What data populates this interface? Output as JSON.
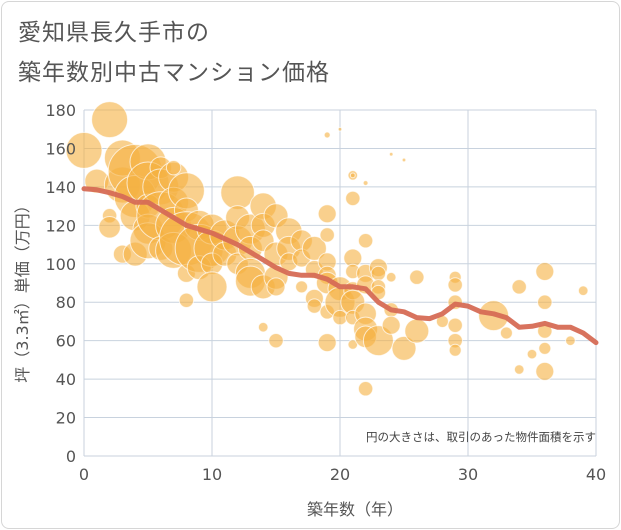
{
  "header": {
    "title_line1": "愛知県長久手市の",
    "title_line2": "築年数別中古マンション価格"
  },
  "colors": {
    "bubble": "#f5b041",
    "line": "#d66b55",
    "grid": "#c8d2de",
    "background": "#ffffff"
  },
  "chart_data": {
    "type": "scatter",
    "title": "愛知県長久手市の築年数別中古マンション価格",
    "xlabel": "築年数（年）",
    "ylabel": "坪（3.3㎡）単価（万円）",
    "xlim": [
      0,
      40
    ],
    "ylim": [
      0,
      180
    ],
    "xticks": [
      0,
      10,
      20,
      30,
      40
    ],
    "yticks": [
      0,
      20,
      40,
      60,
      80,
      100,
      120,
      140,
      160,
      180
    ],
    "grid": true,
    "note": "円の大きさは、取引のあった物件面積を示す",
    "trend_line": [
      [
        0,
        139
      ],
      [
        1,
        138.5
      ],
      [
        2,
        137
      ],
      [
        3,
        135
      ],
      [
        4,
        132
      ],
      [
        5,
        132
      ],
      [
        6,
        128
      ],
      [
        7,
        124
      ],
      [
        8,
        120
      ],
      [
        9,
        118
      ],
      [
        10,
        116
      ],
      [
        11,
        113
      ],
      [
        12,
        110
      ],
      [
        13,
        106
      ],
      [
        14,
        102
      ],
      [
        15,
        98
      ],
      [
        16,
        95
      ],
      [
        17,
        94
      ],
      [
        18,
        94
      ],
      [
        19,
        92
      ],
      [
        20,
        88
      ],
      [
        21,
        88
      ],
      [
        22,
        87
      ],
      [
        23,
        80
      ],
      [
        24,
        76
      ],
      [
        25,
        75
      ],
      [
        26,
        72
      ],
      [
        27,
        71.5
      ],
      [
        28,
        74
      ],
      [
        29,
        79
      ],
      [
        30,
        78
      ],
      [
        31,
        75
      ],
      [
        32,
        74
      ],
      [
        33,
        72
      ],
      [
        34,
        67
      ],
      [
        35,
        67.5
      ],
      [
        36,
        69
      ],
      [
        37,
        67
      ],
      [
        38,
        67
      ],
      [
        39,
        64
      ],
      [
        40,
        59
      ]
    ],
    "bubbles": [
      [
        0,
        159,
        3
      ],
      [
        1,
        143,
        2
      ],
      [
        2,
        175,
        3
      ],
      [
        2,
        125,
        1.2
      ],
      [
        2,
        119,
        1.8
      ],
      [
        3,
        141,
        3
      ],
      [
        3,
        155,
        3
      ],
      [
        3,
        105,
        1.5
      ],
      [
        4,
        148,
        4.5
      ],
      [
        4,
        135,
        3.5
      ],
      [
        4,
        125,
        2.5
      ],
      [
        4,
        105,
        2
      ],
      [
        5,
        153,
        3
      ],
      [
        5,
        142,
        3.5
      ],
      [
        5,
        130,
        2
      ],
      [
        5,
        118,
        2.5
      ],
      [
        5,
        112,
        3
      ],
      [
        6,
        150,
        1.8
      ],
      [
        6,
        140,
        3
      ],
      [
        6,
        125,
        4
      ],
      [
        6,
        108,
        2
      ],
      [
        7,
        145,
        2.5
      ],
      [
        7,
        132,
        2.5
      ],
      [
        7,
        120,
        3
      ],
      [
        7,
        107,
        3
      ],
      [
        7,
        150,
        1.2
      ],
      [
        8,
        138,
        3
      ],
      [
        8,
        128,
        2
      ],
      [
        8,
        113,
        4.5
      ],
      [
        8,
        95,
        1.5
      ],
      [
        8,
        81,
        1.2
      ],
      [
        9,
        120,
        2.5
      ],
      [
        9,
        108,
        4
      ],
      [
        9,
        98,
        2
      ],
      [
        10,
        118,
        2.5
      ],
      [
        10,
        108,
        3
      ],
      [
        10,
        100,
        1.8
      ],
      [
        10,
        88,
        2.5
      ],
      [
        11,
        115,
        2.5
      ],
      [
        11,
        105,
        2
      ],
      [
        12,
        137,
        2.8
      ],
      [
        12,
        124,
        2
      ],
      [
        12,
        112,
        2.5
      ],
      [
        12,
        100,
        1.8
      ],
      [
        13,
        118,
        2.5
      ],
      [
        13,
        108,
        2
      ],
      [
        13,
        95,
        2.5
      ],
      [
        13,
        91,
        2.5
      ],
      [
        14,
        130,
        2.2
      ],
      [
        14,
        120,
        2
      ],
      [
        14,
        112,
        1.8
      ],
      [
        14,
        88,
        2
      ],
      [
        14,
        67,
        0.8
      ],
      [
        15,
        125,
        2
      ],
      [
        15,
        105,
        2
      ],
      [
        15,
        93,
        2
      ],
      [
        15,
        88,
        1.5
      ],
      [
        15,
        60,
        1.2
      ],
      [
        16,
        117,
        2.2
      ],
      [
        16,
        108,
        2
      ],
      [
        16,
        101,
        1.5
      ],
      [
        17,
        112,
        1.8
      ],
      [
        17,
        103,
        1.5
      ],
      [
        17,
        88,
        1
      ],
      [
        18,
        108,
        2
      ],
      [
        18,
        97,
        1.5
      ],
      [
        18,
        82,
        1.5
      ],
      [
        18,
        78,
        1.2
      ],
      [
        19,
        126,
        1.5
      ],
      [
        19,
        115,
        1.2
      ],
      [
        19,
        101,
        1.5
      ],
      [
        19,
        94,
        1.5
      ],
      [
        19,
        90,
        1.8
      ],
      [
        19,
        75,
        1.2
      ],
      [
        19,
        59,
        1.5
      ],
      [
        19,
        167,
        0.5
      ],
      [
        20,
        87,
        2
      ],
      [
        20,
        80,
        2.5
      ],
      [
        20,
        72,
        1.2
      ],
      [
        20,
        170,
        0.3
      ],
      [
        21,
        146,
        0.8
      ],
      [
        21,
        134,
        1.2
      ],
      [
        21,
        103,
        1.5
      ],
      [
        21,
        96,
        1.2
      ],
      [
        21,
        86,
        1.5
      ],
      [
        21,
        80,
        2
      ],
      [
        21,
        72,
        1.2
      ],
      [
        21,
        58,
        0.8
      ],
      [
        21,
        146,
        0.4
      ],
      [
        22,
        142,
        0.4
      ],
      [
        22,
        112,
        1.2
      ],
      [
        22,
        95,
        1.5
      ],
      [
        22,
        89,
        1.5
      ],
      [
        22,
        74,
        1.8
      ],
      [
        22,
        66,
        2
      ],
      [
        22,
        62,
        1.8
      ],
      [
        22,
        35,
        1.2
      ],
      [
        23,
        98,
        1.5
      ],
      [
        23,
        95,
        1.2
      ],
      [
        23,
        88,
        1.2
      ],
      [
        23,
        85,
        1.2
      ],
      [
        23,
        60,
        2.5
      ],
      [
        24,
        93,
        0.8
      ],
      [
        24,
        76,
        1.2
      ],
      [
        24,
        68,
        1.5
      ],
      [
        24,
        157,
        0.3
      ],
      [
        25,
        56,
        2
      ],
      [
        25,
        154,
        0.3
      ],
      [
        26,
        93,
        1.2
      ],
      [
        26,
        65,
        2
      ],
      [
        28,
        70,
        1
      ],
      [
        29,
        93,
        1
      ],
      [
        29,
        89,
        1.2
      ],
      [
        29,
        80,
        1.2
      ],
      [
        29,
        68,
        1.2
      ],
      [
        29,
        60,
        1.2
      ],
      [
        29,
        55,
        1
      ],
      [
        32,
        73,
        2.5
      ],
      [
        33,
        64,
        1
      ],
      [
        34,
        88,
        1.2
      ],
      [
        34,
        45,
        0.8
      ],
      [
        35,
        53,
        0.8
      ],
      [
        36,
        96,
        1.5
      ],
      [
        36,
        80,
        1.2
      ],
      [
        36,
        65,
        1.2
      ],
      [
        36,
        56,
        1
      ],
      [
        36,
        44,
        1.5
      ],
      [
        38,
        60,
        0.8
      ],
      [
        39,
        86,
        0.8
      ]
    ]
  }
}
